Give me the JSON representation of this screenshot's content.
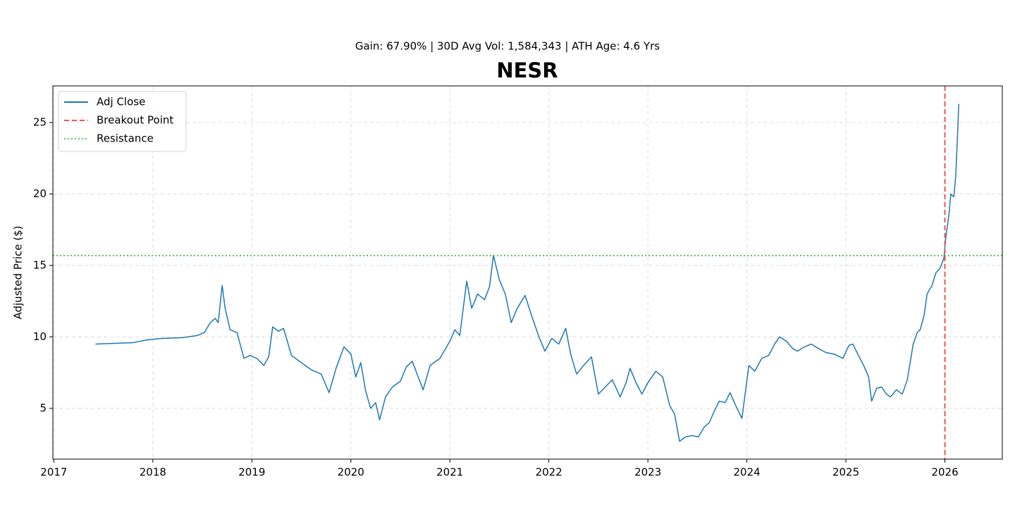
{
  "chart_data": {
    "type": "line",
    "subtitle": "Gain: 67.90% | 30D Avg Vol: 1,584,343 | ATH Age: 4.6 Yrs",
    "title": "NESR",
    "y_label": "Adjusted Price ($)",
    "x": [
      2017.42,
      2017.6,
      2017.8,
      2017.95,
      2018.1,
      2018.3,
      2018.45,
      2018.52,
      2018.58,
      2018.63,
      2018.66,
      2018.7,
      2018.73,
      2018.78,
      2018.85,
      2018.92,
      2018.98,
      2019.05,
      2019.12,
      2019.17,
      2019.21,
      2019.27,
      2019.32,
      2019.4,
      2019.5,
      2019.6,
      2019.7,
      2019.78,
      2019.85,
      2019.93,
      2020.0,
      2020.05,
      2020.1,
      2020.15,
      2020.2,
      2020.25,
      2020.29,
      2020.35,
      2020.42,
      2020.5,
      2020.56,
      2020.62,
      2020.68,
      2020.73,
      2020.8,
      2020.9,
      2021.0,
      2021.05,
      2021.1,
      2021.17,
      2021.22,
      2021.28,
      2021.35,
      2021.4,
      2021.44,
      2021.5,
      2021.56,
      2021.62,
      2021.68,
      2021.76,
      2021.82,
      2021.9,
      2021.96,
      2022.03,
      2022.1,
      2022.17,
      2022.22,
      2022.28,
      2022.35,
      2022.43,
      2022.5,
      2022.57,
      2022.64,
      2022.72,
      2022.78,
      2022.82,
      2022.88,
      2022.94,
      2023.0,
      2023.08,
      2023.15,
      2023.22,
      2023.27,
      2023.32,
      2023.38,
      2023.45,
      2023.51,
      2023.57,
      2023.62,
      2023.67,
      2023.72,
      2023.78,
      2023.83,
      2023.88,
      2023.95,
      2024.02,
      2024.08,
      2024.15,
      2024.22,
      2024.28,
      2024.33,
      2024.4,
      2024.46,
      2024.51,
      2024.58,
      2024.65,
      2024.72,
      2024.8,
      2024.88,
      2024.97,
      2025.03,
      2025.07,
      2025.12,
      2025.18,
      2025.23,
      2025.26,
      2025.31,
      2025.36,
      2025.41,
      2025.45,
      2025.51,
      2025.57,
      2025.62,
      2025.68,
      2025.72,
      2025.75,
      2025.79,
      2025.82,
      2025.87,
      2025.91,
      2025.95,
      2025.99,
      2026.01,
      2026.04,
      2026.06,
      2026.09,
      2026.11,
      2026.13,
      2026.14
    ],
    "series": [
      {
        "name": "Adj Close",
        "color": "#1f77b4",
        "values": [
          9.5,
          9.55,
          9.6,
          9.8,
          9.9,
          9.95,
          10.1,
          10.3,
          11.0,
          11.3,
          11.0,
          13.6,
          12.0,
          10.5,
          10.3,
          8.5,
          8.7,
          8.5,
          8.0,
          8.6,
          10.7,
          10.4,
          10.6,
          8.7,
          8.2,
          7.7,
          7.4,
          6.1,
          7.8,
          9.3,
          8.8,
          7.2,
          8.2,
          6.2,
          5.0,
          5.4,
          4.2,
          5.8,
          6.5,
          6.9,
          7.9,
          8.3,
          7.2,
          6.3,
          8.0,
          8.5,
          9.7,
          10.5,
          10.1,
          13.9,
          12.0,
          13.0,
          12.6,
          13.5,
          15.7,
          14.0,
          13.0,
          11.0,
          12.0,
          12.9,
          11.6,
          10.0,
          9.0,
          9.9,
          9.5,
          10.6,
          8.8,
          7.4,
          8.0,
          8.6,
          6.0,
          6.5,
          7.0,
          5.8,
          6.8,
          7.8,
          6.8,
          6.0,
          6.8,
          7.6,
          7.2,
          5.2,
          4.6,
          2.7,
          3.0,
          3.1,
          3.0,
          3.7,
          4.0,
          4.8,
          5.5,
          5.4,
          6.1,
          5.3,
          4.3,
          8.0,
          7.6,
          8.5,
          8.7,
          9.5,
          10.0,
          9.7,
          9.2,
          9.0,
          9.3,
          9.5,
          9.2,
          8.9,
          8.8,
          8.5,
          9.4,
          9.5,
          8.8,
          8.0,
          7.2,
          5.5,
          6.4,
          6.5,
          6.0,
          5.8,
          6.3,
          6.0,
          7.0,
          9.5,
          10.3,
          10.5,
          11.5,
          13.0,
          13.6,
          14.5,
          14.8,
          15.5,
          17.0,
          18.5,
          20.0,
          19.8,
          21.3,
          24.5,
          26.3
        ]
      }
    ],
    "breakout": {
      "name": "Breakout Point",
      "color": "#ee5555",
      "x": 2026.0
    },
    "resistance": {
      "name": "Resistance",
      "color": "#66bb66",
      "value": 15.69
    },
    "xlim": [
      2016.99,
      2026.58
    ],
    "xticks": [
      2017,
      2018,
      2019,
      2020,
      2021,
      2022,
      2023,
      2024,
      2025,
      2026
    ],
    "ylim": [
      1.45,
      27.56
    ],
    "yticks": [
      5,
      10,
      15,
      20,
      25
    ],
    "grid": true,
    "legend": "upper-left"
  }
}
